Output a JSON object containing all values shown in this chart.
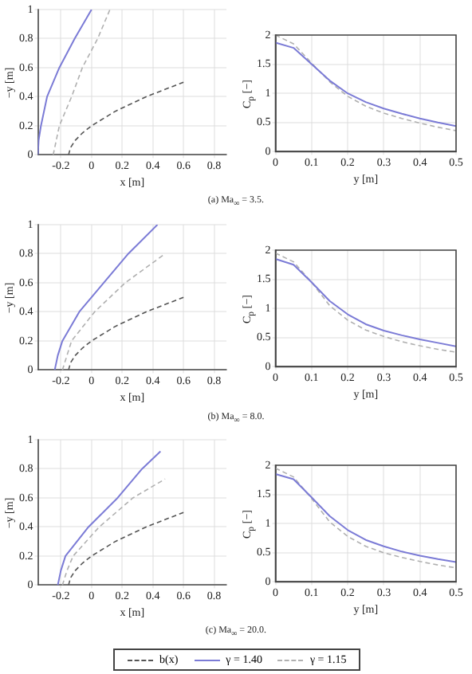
{
  "chart_data": [
    {
      "type": "line",
      "xlabel": "x [m]",
      "ylabel": "−y [m]",
      "xlim": [
        -0.35,
        0.88
      ],
      "ylim": [
        0,
        1
      ],
      "xticks": [
        -0.2,
        0,
        0.2,
        0.4,
        0.6,
        0.8
      ],
      "yticks": [
        0,
        0.2,
        0.4,
        0.6,
        0.8,
        1
      ],
      "grid": true,
      "annotations": [
        "(a) Ma$_{∞}$ = 3.5."
      ],
      "series": [
        {
          "color": "#555555",
          "line_style": "dashed",
          "x": [
            -0.15,
            -0.137,
            -0.106,
            -0.06,
            0.0,
            0.155,
            0.356,
            0.6
          ],
          "values": [
            0,
            0.05,
            0.1,
            0.15,
            0.2,
            0.3,
            0.4,
            0.5
          ]
        },
        {
          "color": "#7b7bd6",
          "line_style": "solid",
          "x": [
            -0.35,
            -0.345,
            -0.33,
            -0.29,
            -0.21,
            -0.11,
            0
          ],
          "values": [
            0,
            0.1,
            0.2,
            0.4,
            0.6,
            0.8,
            1
          ]
        },
        {
          "color": "#b0b0b0",
          "line_style": "dashed",
          "x": [
            -0.25,
            -0.23,
            -0.21,
            -0.13,
            -0.06,
            0.04,
            0.12
          ],
          "values": [
            0,
            0.1,
            0.2,
            0.4,
            0.6,
            0.8,
            1
          ]
        }
      ]
    },
    {
      "type": "line",
      "xlabel": "y [m]",
      "ylabel": "C$_{p}$ [−]",
      "xlim": [
        0,
        0.5
      ],
      "ylim": [
        0,
        2
      ],
      "xticks": [
        0,
        0.1,
        0.2,
        0.3,
        0.4,
        0.5
      ],
      "yticks": [
        0,
        0.5,
        1,
        1.5,
        2
      ],
      "grid": true,
      "x": [
        0,
        0.05,
        0.1,
        0.15,
        0.2,
        0.25,
        0.3,
        0.35,
        0.4,
        0.45,
        0.5
      ],
      "series": [
        {
          "color": "#7b7bd6",
          "line_style": "solid",
          "values": [
            1.87,
            1.78,
            1.5,
            1.22,
            1.0,
            0.85,
            0.74,
            0.65,
            0.57,
            0.5,
            0.44
          ]
        },
        {
          "color": "#b0b0b0",
          "line_style": "dashed",
          "values": [
            2.0,
            1.85,
            1.52,
            1.2,
            0.95,
            0.78,
            0.66,
            0.57,
            0.49,
            0.42,
            0.36
          ]
        }
      ]
    },
    {
      "type": "line",
      "xlabel": "x [m]",
      "ylabel": "−y [m]",
      "xlim": [
        -0.35,
        0.88
      ],
      "ylim": [
        0,
        1
      ],
      "xticks": [
        -0.2,
        0,
        0.2,
        0.4,
        0.6,
        0.8
      ],
      "yticks": [
        0,
        0.2,
        0.4,
        0.6,
        0.8,
        1
      ],
      "grid": true,
      "annotations": [
        "(b) Ma$_{∞}$ = 8.0."
      ],
      "series": [
        {
          "color": "#555555",
          "line_style": "dashed",
          "x": [
            -0.15,
            -0.137,
            -0.106,
            -0.06,
            0.0,
            0.155,
            0.356,
            0.6
          ],
          "values": [
            0,
            0.05,
            0.1,
            0.15,
            0.2,
            0.3,
            0.4,
            0.5
          ]
        },
        {
          "color": "#7b7bd6",
          "line_style": "solid",
          "x": [
            -0.24,
            -0.22,
            -0.19,
            -0.08,
            0.08,
            0.24,
            0.43
          ],
          "values": [
            0,
            0.1,
            0.2,
            0.4,
            0.6,
            0.8,
            1
          ]
        },
        {
          "color": "#b0b0b0",
          "line_style": "dashed",
          "x": [
            -0.19,
            -0.16,
            -0.13,
            0.02,
            0.22,
            0.48
          ],
          "values": [
            0,
            0.1,
            0.2,
            0.4,
            0.6,
            0.8
          ]
        }
      ]
    },
    {
      "type": "line",
      "xlabel": "y [m]",
      "ylabel": "C$_{p}$ [−]",
      "xlim": [
        0,
        0.5
      ],
      "ylim": [
        0,
        2
      ],
      "xticks": [
        0,
        0.1,
        0.2,
        0.3,
        0.4,
        0.5
      ],
      "yticks": [
        0,
        0.5,
        1,
        1.5,
        2
      ],
      "grid": true,
      "x": [
        0,
        0.05,
        0.1,
        0.15,
        0.2,
        0.25,
        0.3,
        0.35,
        0.4,
        0.45,
        0.5
      ],
      "series": [
        {
          "color": "#7b7bd6",
          "line_style": "solid",
          "values": [
            1.85,
            1.75,
            1.45,
            1.13,
            0.9,
            0.73,
            0.62,
            0.54,
            0.47,
            0.41,
            0.35
          ]
        },
        {
          "color": "#b0b0b0",
          "line_style": "dashed",
          "values": [
            1.95,
            1.8,
            1.45,
            1.05,
            0.8,
            0.63,
            0.52,
            0.43,
            0.36,
            0.3,
            0.25
          ]
        }
      ]
    },
    {
      "type": "line",
      "xlabel": "x [m]",
      "ylabel": "−y [m]",
      "xlim": [
        -0.35,
        0.88
      ],
      "ylim": [
        0,
        1
      ],
      "xticks": [
        -0.2,
        0,
        0.2,
        0.4,
        0.6,
        0.8
      ],
      "yticks": [
        0,
        0.2,
        0.4,
        0.6,
        0.8,
        1
      ],
      "grid": true,
      "legend": "bottom",
      "annotations": [
        "(c) Ma$_{∞}$ = 20.0."
      ],
      "series": [
        {
          "name": "b(x)",
          "color": "#555555",
          "line_style": "dashed",
          "x": [
            -0.15,
            -0.137,
            -0.106,
            -0.06,
            0.0,
            0.155,
            0.356,
            0.6
          ],
          "values": [
            0,
            0.05,
            0.1,
            0.15,
            0.2,
            0.3,
            0.4,
            0.5
          ]
        },
        {
          "name": "γ = 1.40",
          "color": "#7b7bd6",
          "line_style": "solid",
          "x": [
            -0.22,
            -0.2,
            -0.17,
            -0.02,
            0.17,
            0.33,
            0.45
          ],
          "values": [
            0,
            0.1,
            0.2,
            0.4,
            0.6,
            0.8,
            0.92
          ]
        },
        {
          "name": "γ = 1.15",
          "color": "#b0b0b0",
          "line_style": "dashed",
          "x": [
            -0.19,
            -0.16,
            -0.12,
            0.05,
            0.27,
            0.48
          ],
          "values": [
            0,
            0.1,
            0.2,
            0.4,
            0.6,
            0.73
          ]
        }
      ]
    },
    {
      "type": "line",
      "xlabel": "y [m]",
      "ylabel": "C$_{p}$ [−]",
      "xlim": [
        0,
        0.5
      ],
      "ylim": [
        0,
        2
      ],
      "xticks": [
        0,
        0.1,
        0.2,
        0.3,
        0.4,
        0.5
      ],
      "yticks": [
        0,
        0.5,
        1,
        1.5,
        2
      ],
      "grid": true,
      "x": [
        0,
        0.05,
        0.1,
        0.15,
        0.2,
        0.25,
        0.3,
        0.35,
        0.4,
        0.45,
        0.5
      ],
      "series": [
        {
          "color": "#7b7bd6",
          "line_style": "solid",
          "values": [
            1.85,
            1.76,
            1.45,
            1.13,
            0.89,
            0.72,
            0.61,
            0.52,
            0.45,
            0.39,
            0.34
          ]
        },
        {
          "color": "#b0b0b0",
          "line_style": "dashed",
          "values": [
            1.95,
            1.8,
            1.43,
            1.03,
            0.78,
            0.61,
            0.5,
            0.42,
            0.35,
            0.29,
            0.24
          ]
        }
      ]
    }
  ]
}
